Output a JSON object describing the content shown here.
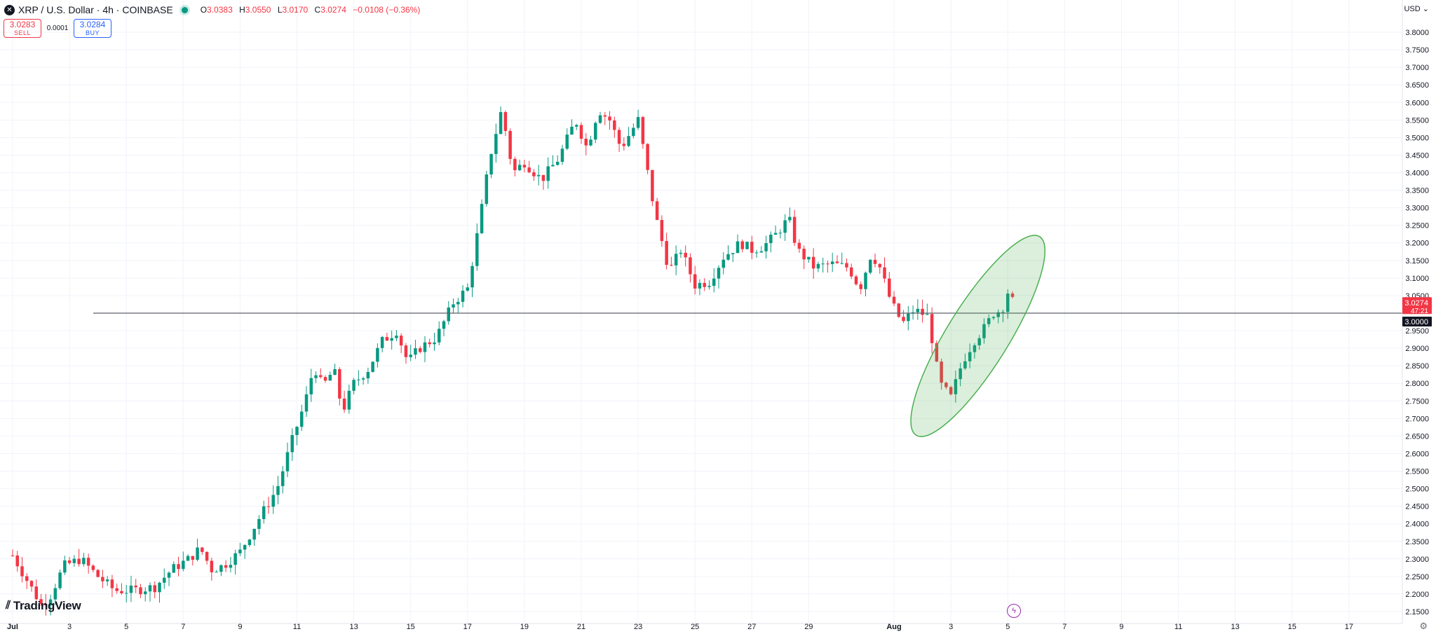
{
  "header": {
    "symbol_icon": "x-logo-icon",
    "title": "XRP / U.S. Dollar · 4h · COINBASE",
    "status_color": "#089981",
    "ohlc": {
      "o_label": "O",
      "o": "3.0383",
      "h_label": "H",
      "h": "3.0550",
      "l_label": "L",
      "l": "3.0170",
      "c_label": "C",
      "c": "3.0274",
      "change": "−0.0108 (−0.36%)"
    }
  },
  "trade": {
    "sell_price": "3.0283",
    "sell_label": "SELL",
    "spread": "0.0001",
    "buy_price": "3.0284",
    "buy_label": "BUY"
  },
  "currency": "USD",
  "logo": "TradingView",
  "colors": {
    "up": "#089981",
    "down": "#f23645",
    "highlight": "#4caf50",
    "level_line": "#5d606b"
  },
  "chart_data": {
    "type": "candlestick",
    "symbol": "XRP / U.S. Dollar",
    "interval": "4h",
    "exchange": "COINBASE",
    "ylim": [
      2.14,
      3.82
    ],
    "y_ticks": [
      "3.8000",
      "3.7500",
      "3.7000",
      "3.6500",
      "3.6000",
      "3.5500",
      "3.5000",
      "3.4500",
      "3.4000",
      "3.3500",
      "3.3000",
      "3.2500",
      "3.2000",
      "3.1500",
      "3.1000",
      "3.0500",
      "2.9500",
      "2.9000",
      "2.8500",
      "2.8000",
      "2.7500",
      "2.7000",
      "2.6500",
      "2.6000",
      "2.5500",
      "2.5000",
      "2.4500",
      "2.4000",
      "2.3500",
      "2.3000",
      "2.2500",
      "2.2000",
      "2.1500"
    ],
    "x_ticks": [
      {
        "label": "Jul",
        "day": 1
      },
      {
        "label": "3",
        "day": 3
      },
      {
        "label": "5",
        "day": 5
      },
      {
        "label": "7",
        "day": 7
      },
      {
        "label": "9",
        "day": 9
      },
      {
        "label": "11",
        "day": 11
      },
      {
        "label": "13",
        "day": 13
      },
      {
        "label": "15",
        "day": 15
      },
      {
        "label": "17",
        "day": 17
      },
      {
        "label": "19",
        "day": 19
      },
      {
        "label": "21",
        "day": 21
      },
      {
        "label": "23",
        "day": 23
      },
      {
        "label": "25",
        "day": 25
      },
      {
        "label": "27",
        "day": 27
      },
      {
        "label": "29",
        "day": 29
      },
      {
        "label": "Aug",
        "day": 32
      },
      {
        "label": "3",
        "day": 34
      },
      {
        "label": "5",
        "day": 36
      },
      {
        "label": "7",
        "day": 38
      },
      {
        "label": "9",
        "day": 40
      },
      {
        "label": "11",
        "day": 42
      },
      {
        "label": "13",
        "day": 44
      },
      {
        "label": "15",
        "day": 46
      },
      {
        "label": "17",
        "day": 48
      }
    ],
    "horizontal_level": 3.0,
    "level_label": "3.0000",
    "last_price_label": "3.0274",
    "countdown_label": "47:21",
    "highlight_ellipse": {
      "day_start": 33.3,
      "day_end": 36.6,
      "price_low": 2.72,
      "price_high": 3.15
    },
    "anchors": [
      [
        1.0,
        2.31
      ],
      [
        1.5,
        2.24
      ],
      [
        2.0,
        2.17
      ],
      [
        2.3,
        2.19
      ],
      [
        2.8,
        2.28
      ],
      [
        3.4,
        2.3
      ],
      [
        4.0,
        2.25
      ],
      [
        4.6,
        2.21
      ],
      [
        5.2,
        2.21
      ],
      [
        6.0,
        2.22
      ],
      [
        6.6,
        2.27
      ],
      [
        7.2,
        2.3
      ],
      [
        7.6,
        2.33
      ],
      [
        8.0,
        2.27
      ],
      [
        8.4,
        2.28
      ],
      [
        9.0,
        2.32
      ],
      [
        9.7,
        2.42
      ],
      [
        10.3,
        2.5
      ],
      [
        10.8,
        2.63
      ],
      [
        11.3,
        2.75
      ],
      [
        11.6,
        2.85
      ],
      [
        11.9,
        2.79
      ],
      [
        12.3,
        2.84
      ],
      [
        12.6,
        2.72
      ],
      [
        13.0,
        2.8
      ],
      [
        13.5,
        2.84
      ],
      [
        14.0,
        2.92
      ],
      [
        14.5,
        2.95
      ],
      [
        14.9,
        2.86
      ],
      [
        15.3,
        2.9
      ],
      [
        15.9,
        2.93
      ],
      [
        16.5,
        3.03
      ],
      [
        17.0,
        3.07
      ],
      [
        17.4,
        3.25
      ],
      [
        17.8,
        3.45
      ],
      [
        18.2,
        3.58
      ],
      [
        18.6,
        3.4
      ],
      [
        19.0,
        3.43
      ],
      [
        19.6,
        3.38
      ],
      [
        20.2,
        3.44
      ],
      [
        20.8,
        3.55
      ],
      [
        21.2,
        3.47
      ],
      [
        21.6,
        3.58
      ],
      [
        22.0,
        3.55
      ],
      [
        22.4,
        3.47
      ],
      [
        23.0,
        3.55
      ],
      [
        23.6,
        3.28
      ],
      [
        24.1,
        3.12
      ],
      [
        24.5,
        3.18
      ],
      [
        25.0,
        3.08
      ],
      [
        25.5,
        3.09
      ],
      [
        26.0,
        3.16
      ],
      [
        26.6,
        3.2
      ],
      [
        27.0,
        3.18
      ],
      [
        27.4,
        3.19
      ],
      [
        27.8,
        3.22
      ],
      [
        28.3,
        3.27
      ],
      [
        28.6,
        3.18
      ],
      [
        29.2,
        3.13
      ],
      [
        29.8,
        3.14
      ],
      [
        30.4,
        3.13
      ],
      [
        30.8,
        3.07
      ],
      [
        31.2,
        3.17
      ],
      [
        31.5,
        3.13
      ],
      [
        31.9,
        3.03
      ],
      [
        32.3,
        2.97
      ],
      [
        32.7,
        3.01
      ],
      [
        33.2,
        2.99
      ],
      [
        33.6,
        2.8
      ],
      [
        34.0,
        2.76
      ],
      [
        34.4,
        2.86
      ],
      [
        34.8,
        2.92
      ],
      [
        35.2,
        2.96
      ],
      [
        35.5,
        3.0
      ],
      [
        35.8,
        3.01
      ],
      [
        36.0,
        3.06
      ],
      [
        36.2,
        3.03
      ]
    ]
  }
}
